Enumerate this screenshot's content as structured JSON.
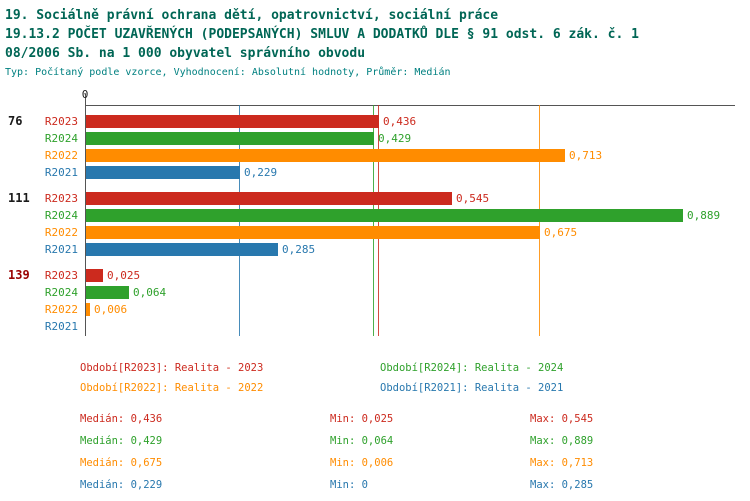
{
  "header": {
    "line1": "19. Sociálně právní ochrana dětí, opatrovnictví, sociální práce",
    "line2": "19.13.2 POČET UZAVŘENÝCH (PODEPSANÝCH) SMLUV A DODATKŮ DLE § 91 odst. 6 zák. č. 1",
    "line3": "08/2006 Sb. na 1 000 obyvatel správního obvodu",
    "meta": "Typ: Počítaný podle vzorce, Vyhodnocení: Absolutní hodnoty, Průměr: Medián"
  },
  "colors": {
    "R2023": "#cc2a1e",
    "R2024": "#2fa12c",
    "R2022": "#ff8c00",
    "R2021": "#2878ae",
    "title": "#006655",
    "meta": "#008080",
    "axis": "#555555"
  },
  "chart_data": {
    "type": "bar",
    "orientation": "horizontal",
    "title": "19.13.2 POČET UZAVŘENÝCH (PODEPSANÝCH) SMLUV A DODATKŮ DLE § 91 odst. 6 zák. č. 108/2006 Sb. na 1 000 obyvatel správního obvodu",
    "xlabel": "",
    "ylabel": "",
    "xlim": [
      0,
      0.92
    ],
    "grid": false,
    "axis_zero_label": "0",
    "categories": [
      "76",
      "111",
      "139"
    ],
    "category_colors": [
      "#1a1a1a",
      "#1a1a1a",
      "#990000"
    ],
    "series": [
      {
        "name": "R2023",
        "values": [
          0.436,
          0.545,
          0.025
        ],
        "value_labels": [
          "0,436",
          "0,545",
          "0,025"
        ],
        "median": 0.436
      },
      {
        "name": "R2024",
        "values": [
          0.429,
          0.889,
          0.064
        ],
        "value_labels": [
          "0,429",
          "0,889",
          "0,064"
        ],
        "median": 0.429
      },
      {
        "name": "R2022",
        "values": [
          0.713,
          0.675,
          0.006
        ],
        "value_labels": [
          "0,713",
          "0,675",
          "0,006"
        ],
        "median": 0.675
      },
      {
        "name": "R2021",
        "values": [
          0.229,
          0.285,
          0
        ],
        "value_labels": [
          "0,229",
          "0,285",
          ""
        ],
        "median": 0.229
      }
    ],
    "legend": [
      {
        "series": "R2023",
        "label": "Období[R2023]: Realita - 2023"
      },
      {
        "series": "R2024",
        "label": "Období[R2024]: Realita - 2024"
      },
      {
        "series": "R2022",
        "label": "Období[R2022]: Realita - 2022"
      },
      {
        "series": "R2021",
        "label": "Období[R2021]: Realita - 2021"
      }
    ],
    "stats_rows": [
      {
        "series": "R2023",
        "median": "Medián: 0,436",
        "min": "Min: 0,025",
        "max": "Max: 0,545"
      },
      {
        "series": "R2024",
        "median": "Medián: 0,429",
        "min": "Min: 0,064",
        "max": "Max: 0,889"
      },
      {
        "series": "R2022",
        "median": "Medián: 0,675",
        "min": "Min: 0,006",
        "max": "Max: 0,713"
      },
      {
        "series": "R2021",
        "median": "Medián: 0,229",
        "min": "Min: 0",
        "max": "Max: 0,285"
      }
    ]
  }
}
